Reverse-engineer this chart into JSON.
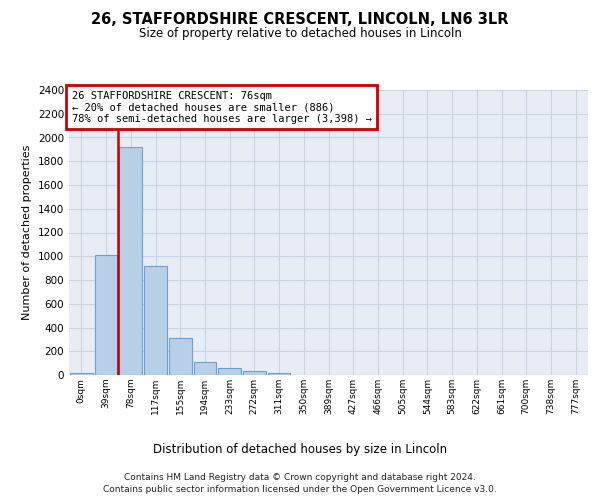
{
  "title": "26, STAFFORDSHIRE CRESCENT, LINCOLN, LN6 3LR",
  "subtitle": "Size of property relative to detached houses in Lincoln",
  "xlabel": "Distribution of detached houses by size in Lincoln",
  "ylabel": "Number of detached properties",
  "bar_color": "#b8cfe8",
  "bar_edge_color": "#6a9fd0",
  "categories": [
    "0sqm",
    "39sqm",
    "78sqm",
    "117sqm",
    "155sqm",
    "194sqm",
    "233sqm",
    "272sqm",
    "311sqm",
    "350sqm",
    "389sqm",
    "427sqm",
    "466sqm",
    "505sqm",
    "544sqm",
    "583sqm",
    "622sqm",
    "661sqm",
    "700sqm",
    "738sqm",
    "777sqm"
  ],
  "values": [
    20,
    1010,
    1920,
    915,
    315,
    110,
    55,
    35,
    20,
    0,
    0,
    0,
    0,
    0,
    0,
    0,
    0,
    0,
    0,
    0,
    0
  ],
  "ylim": [
    0,
    2400
  ],
  "yticks": [
    0,
    200,
    400,
    600,
    800,
    1000,
    1200,
    1400,
    1600,
    1800,
    2000,
    2200,
    2400
  ],
  "annotation_line1": "26 STAFFORDSHIRE CRESCENT: 76sqm",
  "annotation_line2": "← 20% of detached houses are smaller (886)",
  "annotation_line3": "78% of semi-detached houses are larger (3,398) →",
  "annotation_box_facecolor": "#ffffff",
  "annotation_box_edgecolor": "#cc0000",
  "vline_color": "#cc0000",
  "grid_color": "#c8d4e4",
  "background_color": "#e8edf5",
  "footer_line1": "Contains HM Land Registry data © Crown copyright and database right 2024.",
  "footer_line2": "Contains public sector information licensed under the Open Government Licence v3.0.",
  "vline_bar_index": 1.5
}
